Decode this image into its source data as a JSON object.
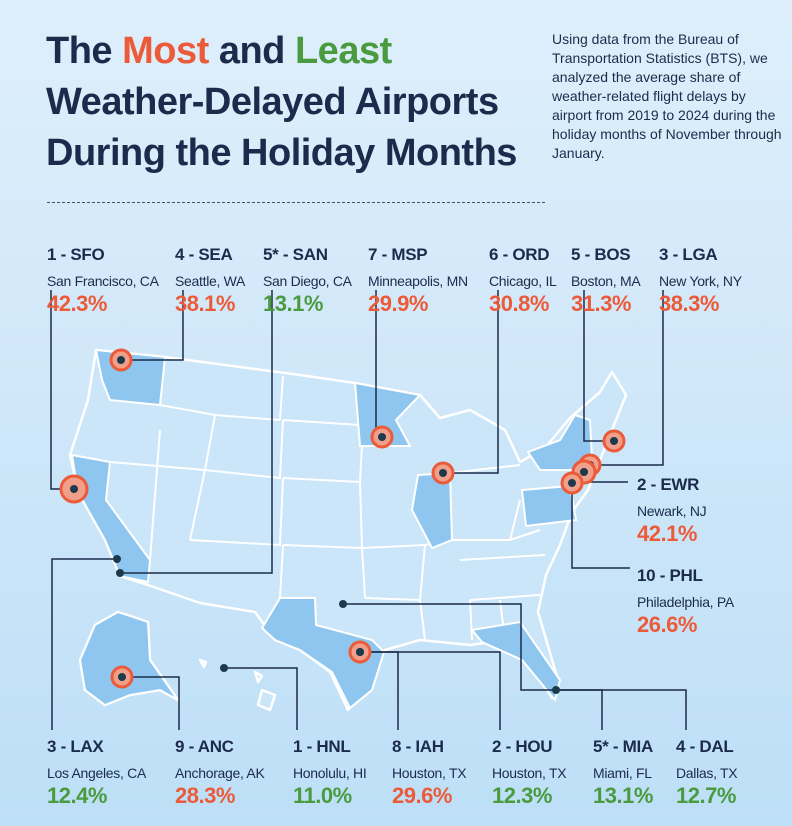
{
  "title": {
    "line1_a": "The ",
    "most": "Most",
    "line1_b": " and ",
    "least": "Least",
    "line2": "Weather-Delayed Airports",
    "line3": "During the Holiday Months"
  },
  "intro": "Using data from the Bureau of Transportation Statistics (BTS), we analyzed the average share of weather-related flight delays by airport from 2019 to 2024 during the holiday months of November through January.",
  "colors": {
    "most": "#eb5b39",
    "least": "#4a9b3f",
    "text": "#1c2b4b",
    "map_fill": "#cbe5f9",
    "map_highlight": "#8fc6ef"
  },
  "airports": [
    {
      "code": "1 - SFO",
      "city": "San Francisco, CA",
      "pct": "42.3%",
      "group": "most"
    },
    {
      "code": "4 - SEA",
      "city": "Seattle, WA",
      "pct": "38.1%",
      "group": "most"
    },
    {
      "code": "5* - SAN",
      "city": "San Diego, CA",
      "pct": "13.1%",
      "group": "least"
    },
    {
      "code": "7 - MSP",
      "city": "Minneapolis, MN",
      "pct": "29.9%",
      "group": "most"
    },
    {
      "code": "6 - ORD",
      "city": "Chicago, IL",
      "pct": "30.8%",
      "group": "most"
    },
    {
      "code": "5 - BOS",
      "city": "Boston, MA",
      "pct": "31.3%",
      "group": "most"
    },
    {
      "code": "3 - LGA",
      "city": "New York, NY",
      "pct": "38.3%",
      "group": "most"
    },
    {
      "code": "2 - EWR",
      "city": "Newark, NJ",
      "pct": "42.1%",
      "group": "most"
    },
    {
      "code": "10 - PHL",
      "city": "Philadelphia, PA",
      "pct": "26.6%",
      "group": "most"
    },
    {
      "code": "3 - LAX",
      "city": "Los Angeles, CA",
      "pct": "12.4%",
      "group": "least"
    },
    {
      "code": "9 - ANC",
      "city": "Anchorage, AK",
      "pct": "28.3%",
      "group": "most"
    },
    {
      "code": "1 - HNL",
      "city": "Honolulu, HI",
      "pct": "11.0%",
      "group": "least"
    },
    {
      "code": "8 - IAH",
      "city": "Houston, TX",
      "pct": "29.6%",
      "group": "most"
    },
    {
      "code": "2 - HOU",
      "city": "Houston, TX",
      "pct": "12.3%",
      "group": "least"
    },
    {
      "code": "5* - MIA",
      "city": "Miami, FL",
      "pct": "13.1%",
      "group": "least"
    },
    {
      "code": "4 - DAL",
      "city": "Dallas, TX",
      "pct": "12.7%",
      "group": "least"
    }
  ]
}
